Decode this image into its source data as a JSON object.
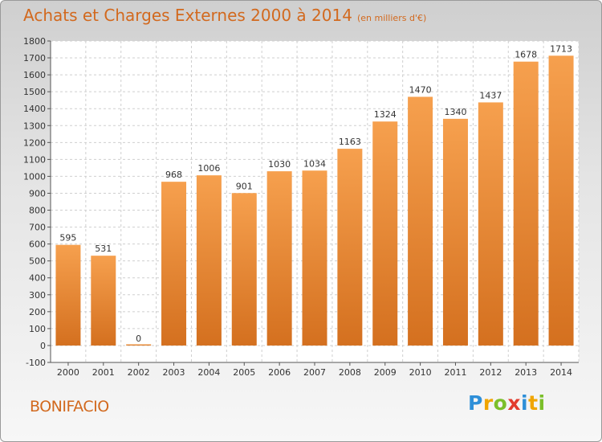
{
  "header": {
    "title": "Achats et Charges Externes 2000 à 2014",
    "subtitle": "(en milliers d'€)"
  },
  "footer": {
    "place": "BONIFACIO",
    "logo": [
      "P",
      "r",
      "o",
      "x",
      "i",
      "t",
      "i"
    ],
    "logo_colors": [
      "#2e8fd8",
      "#f0a500",
      "#7bbf2a",
      "#e23b2e",
      "#2e8fd8",
      "#f0a500",
      "#7bbf2a"
    ]
  },
  "colors": {
    "bar_light": "#f6a04e",
    "bar_dark": "#d4701f",
    "title": "#d2691e",
    "grid": "#cfcfcf"
  },
  "chart_data": {
    "type": "bar",
    "title": "Achats et Charges Externes 2000 à 2014",
    "categories": [
      "2000",
      "2001",
      "2002",
      "2003",
      "2004",
      "2005",
      "2006",
      "2007",
      "2008",
      "2009",
      "2010",
      "2011",
      "2012",
      "2013",
      "2014"
    ],
    "values": [
      595,
      531,
      0,
      968,
      1006,
      901,
      1030,
      1034,
      1163,
      1324,
      1470,
      1340,
      1437,
      1678,
      1713
    ],
    "ylim": [
      -100,
      1800
    ],
    "yticks": [
      -100,
      0,
      100,
      200,
      300,
      400,
      500,
      600,
      700,
      800,
      900,
      1000,
      1100,
      1200,
      1300,
      1400,
      1500,
      1600,
      1700,
      1800
    ],
    "grid": true,
    "legend": "none"
  }
}
